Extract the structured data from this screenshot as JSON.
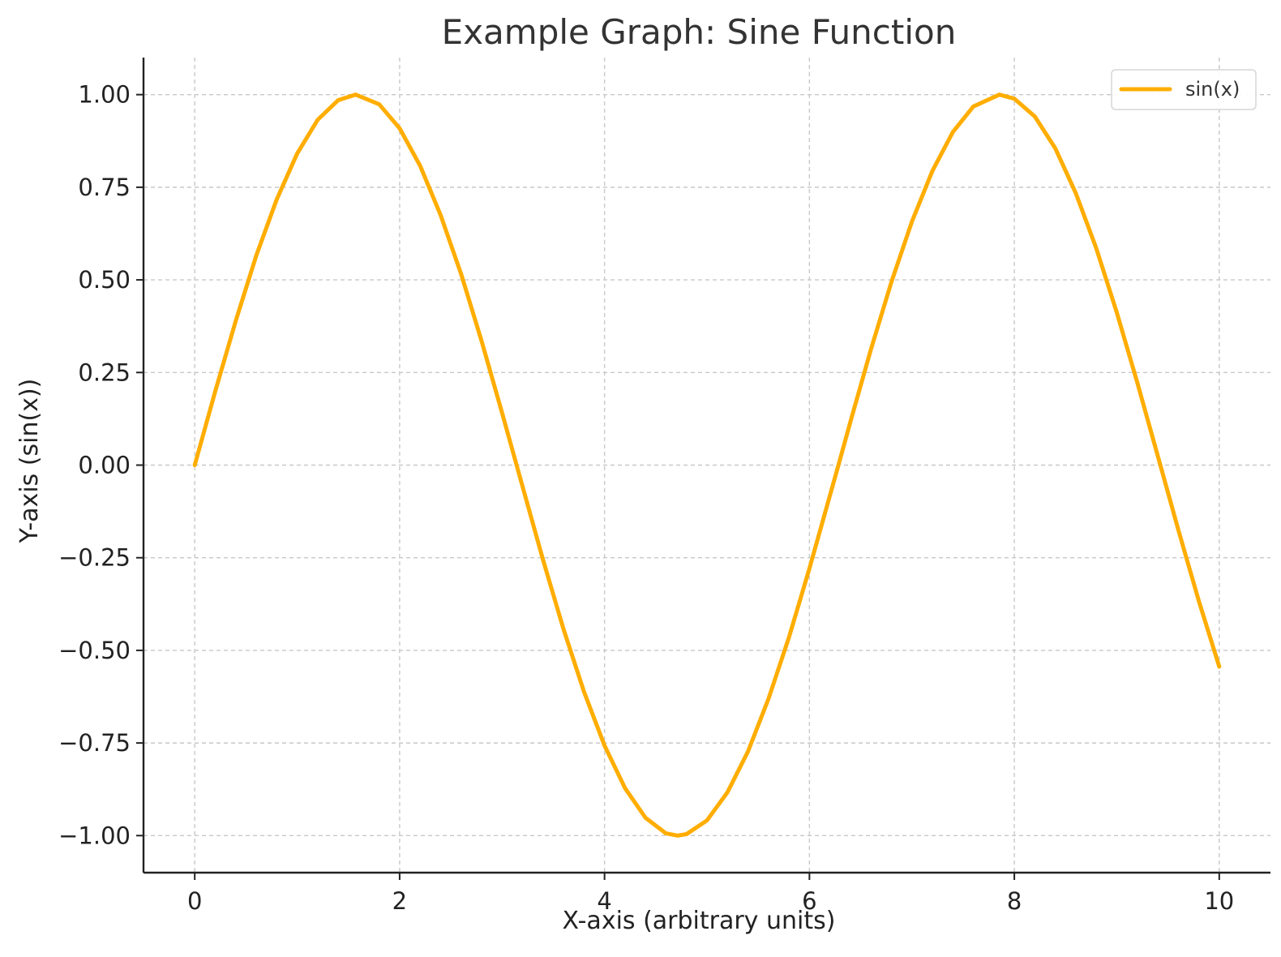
{
  "chart_data": {
    "type": "line",
    "title": "Example Graph: Sine Function",
    "xlabel": "X-axis (arbitrary units)",
    "ylabel": "Y-axis (sin(x))",
    "xlim": [
      -0.5,
      10.5
    ],
    "ylim": [
      -1.1,
      1.1
    ],
    "x_ticks": [
      0,
      2,
      4,
      6,
      8,
      10
    ],
    "x_tick_labels": [
      "0",
      "2",
      "4",
      "6",
      "8",
      "10"
    ],
    "y_ticks": [
      1.0,
      0.75,
      0.5,
      0.25,
      0.0,
      -0.25,
      -0.5,
      -0.75,
      -1.0
    ],
    "y_tick_labels": [
      "1.00",
      "0.75",
      "0.50",
      "0.25",
      "0.00",
      "−0.25",
      "−0.50",
      "−0.75",
      "−1.00"
    ],
    "grid": true,
    "legend": {
      "position": "top-right",
      "entries": [
        "sin(x)"
      ]
    },
    "series": [
      {
        "name": "sin(x)",
        "color": "#ffad00",
        "x": [
          0,
          0.2,
          0.4,
          0.6,
          0.8,
          1.0,
          1.2,
          1.4,
          1.5708,
          1.8,
          2.0,
          2.2,
          2.4,
          2.6,
          2.8,
          3.0,
          3.1416,
          3.4,
          3.6,
          3.8,
          4.0,
          4.2,
          4.4,
          4.6,
          4.7124,
          4.8,
          5.0,
          5.2,
          5.4,
          5.6,
          5.8,
          6.0,
          6.2832,
          6.4,
          6.6,
          6.8,
          7.0,
          7.2,
          7.4,
          7.6,
          7.854,
          8.0,
          8.2,
          8.4,
          8.6,
          8.8,
          9.0,
          9.2,
          9.4,
          9.6,
          9.8,
          10.0
        ],
        "y": [
          0.0,
          0.199,
          0.389,
          0.565,
          0.717,
          0.841,
          0.932,
          0.985,
          1.0,
          0.974,
          0.909,
          0.808,
          0.675,
          0.516,
          0.335,
          0.141,
          0.0,
          -0.256,
          -0.443,
          -0.612,
          -0.757,
          -0.872,
          -0.952,
          -0.994,
          -1.0,
          -0.996,
          -0.959,
          -0.883,
          -0.773,
          -0.631,
          -0.465,
          -0.279,
          0.0,
          0.117,
          0.312,
          0.494,
          0.657,
          0.794,
          0.899,
          0.968,
          1.0,
          0.989,
          0.941,
          0.855,
          0.734,
          0.585,
          0.412,
          0.223,
          0.025,
          -0.174,
          -0.366,
          -0.544
        ]
      }
    ]
  }
}
